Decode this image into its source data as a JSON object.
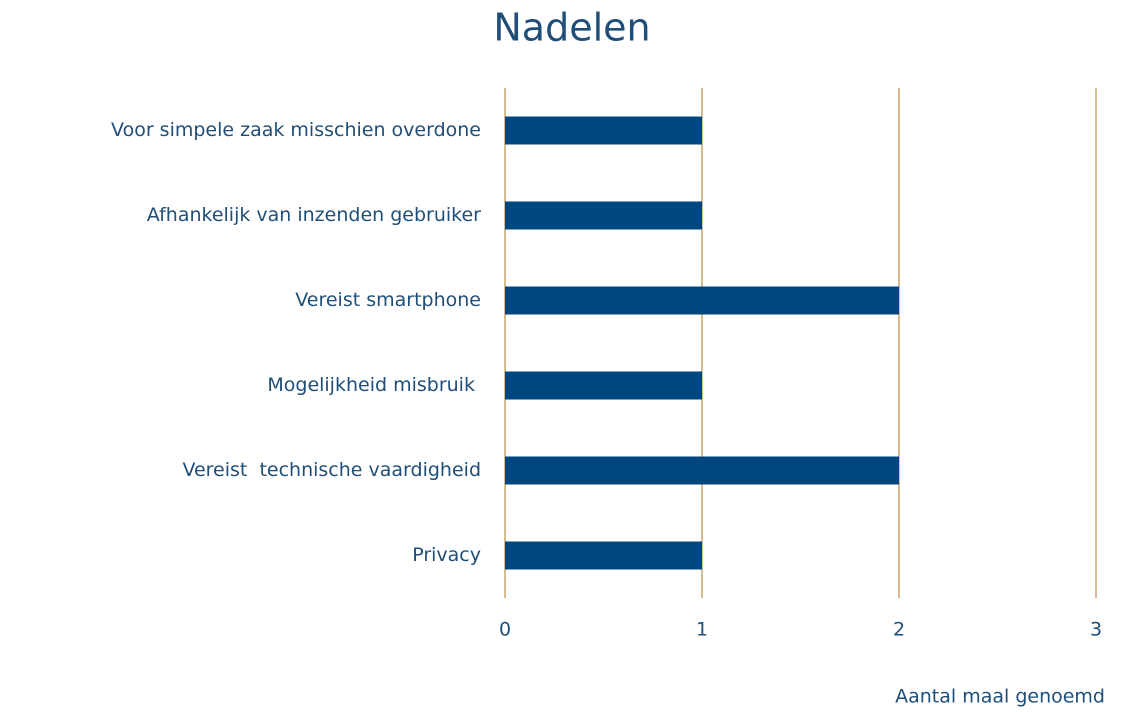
{
  "chart_data": {
    "type": "barh",
    "title": "Nadelen",
    "categories": [
      "Voor simpele zaak misschien overdone",
      "Afhankelijk van inzenden gebruiker",
      "Vereist smartphone",
      "Mogelijkheid misbruik ",
      "Vereist  technische vaardigheid",
      "Privacy"
    ],
    "values": [
      1,
      1,
      2,
      1,
      2,
      1
    ],
    "color": "#00467f",
    "xlabel": "Aantal maal genoemd",
    "xlim": [
      0,
      3
    ],
    "xticks": [
      0,
      1,
      2,
      3
    ],
    "grid": true,
    "grid_color": "#c9a66b"
  }
}
